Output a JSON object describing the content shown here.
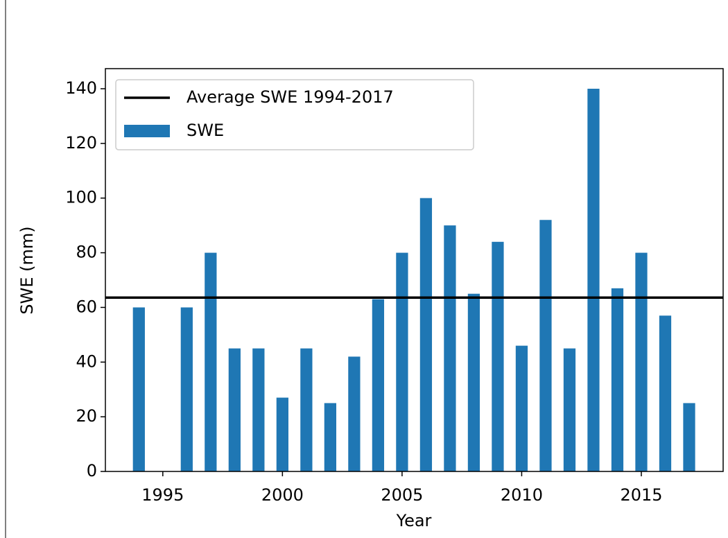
{
  "chart_data": {
    "type": "bar",
    "x_label": "Year",
    "y_label": "SWE (mm)",
    "series": [
      {
        "name": "SWE",
        "color": "#1f77b4",
        "x": [
          1994,
          1996,
          1997,
          1998,
          1999,
          2000,
          2001,
          2002,
          2003,
          2004,
          2005,
          2006,
          2007,
          2008,
          2009,
          2010,
          2011,
          2012,
          2013,
          2014,
          2015,
          2016,
          2017
        ],
        "values": [
          60,
          60,
          80,
          45,
          45,
          27,
          45,
          25,
          42,
          63,
          80,
          100,
          90,
          65,
          84,
          46,
          92,
          45,
          140,
          67,
          80,
          57,
          25
        ]
      }
    ],
    "reference_line": {
      "name": "Average SWE 1994-2017",
      "value": 63.6,
      "color": "#000000"
    },
    "xlim": [
      1992.6,
      2018.42
    ],
    "xticks": [
      1995,
      2000,
      2005,
      2010,
      2015
    ],
    "ylim": [
      0,
      147.35
    ],
    "yticks": [
      0,
      20,
      40,
      60,
      80,
      100,
      120,
      140
    ],
    "legend": "upper left"
  }
}
